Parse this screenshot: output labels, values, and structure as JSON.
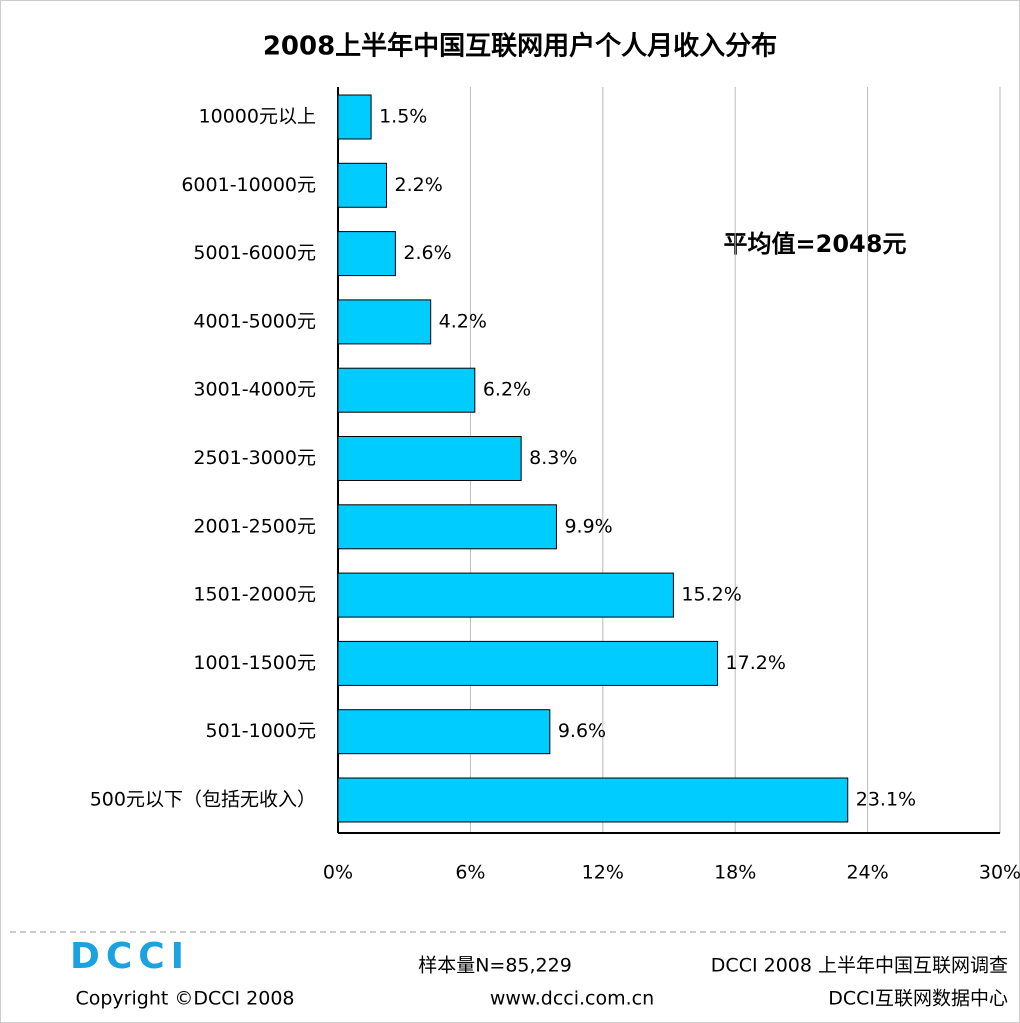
{
  "chart_data": {
    "type": "bar",
    "orientation": "horizontal",
    "title": "2008上半年中国互联网用户个人月收入分布",
    "categories": [
      "10000元以上",
      "6001-10000元",
      "5001-6000元",
      "4001-5000元",
      "3001-4000元",
      "2501-3000元",
      "2001-2500元",
      "1501-2000元",
      "1001-1500元",
      "501-1000元",
      "500元以下（包括无收入）"
    ],
    "values": [
      1.5,
      2.2,
      2.6,
      4.2,
      6.2,
      8.3,
      9.9,
      15.2,
      17.2,
      9.6,
      23.1
    ],
    "value_labels": [
      "1.5%",
      "2.2%",
      "2.6%",
      "4.2%",
      "6.2%",
      "8.3%",
      "9.9%",
      "15.2%",
      "17.2%",
      "9.6%",
      "23.1%"
    ],
    "color": "#00ccff",
    "xlim": [
      0,
      30
    ],
    "xticks": [
      {
        "value": 0,
        "label": "0%"
      },
      {
        "value": 6,
        "label": "6%"
      },
      {
        "value": 12,
        "label": "12%"
      },
      {
        "value": 18,
        "label": "18%"
      },
      {
        "value": 24,
        "label": "24%"
      },
      {
        "value": 30,
        "label": "30%"
      }
    ],
    "grid": true,
    "annotation": "平均值=2048元"
  },
  "footer": {
    "logo": "DCCI",
    "copyright": "Copyright ©DCCI 2008",
    "sample": "样本量N=85,229",
    "survey": "DCCI 2008 上半年中国互联网调查",
    "url": "www.dcci.com.cn",
    "org": "DCCI互联网数据中心"
  }
}
